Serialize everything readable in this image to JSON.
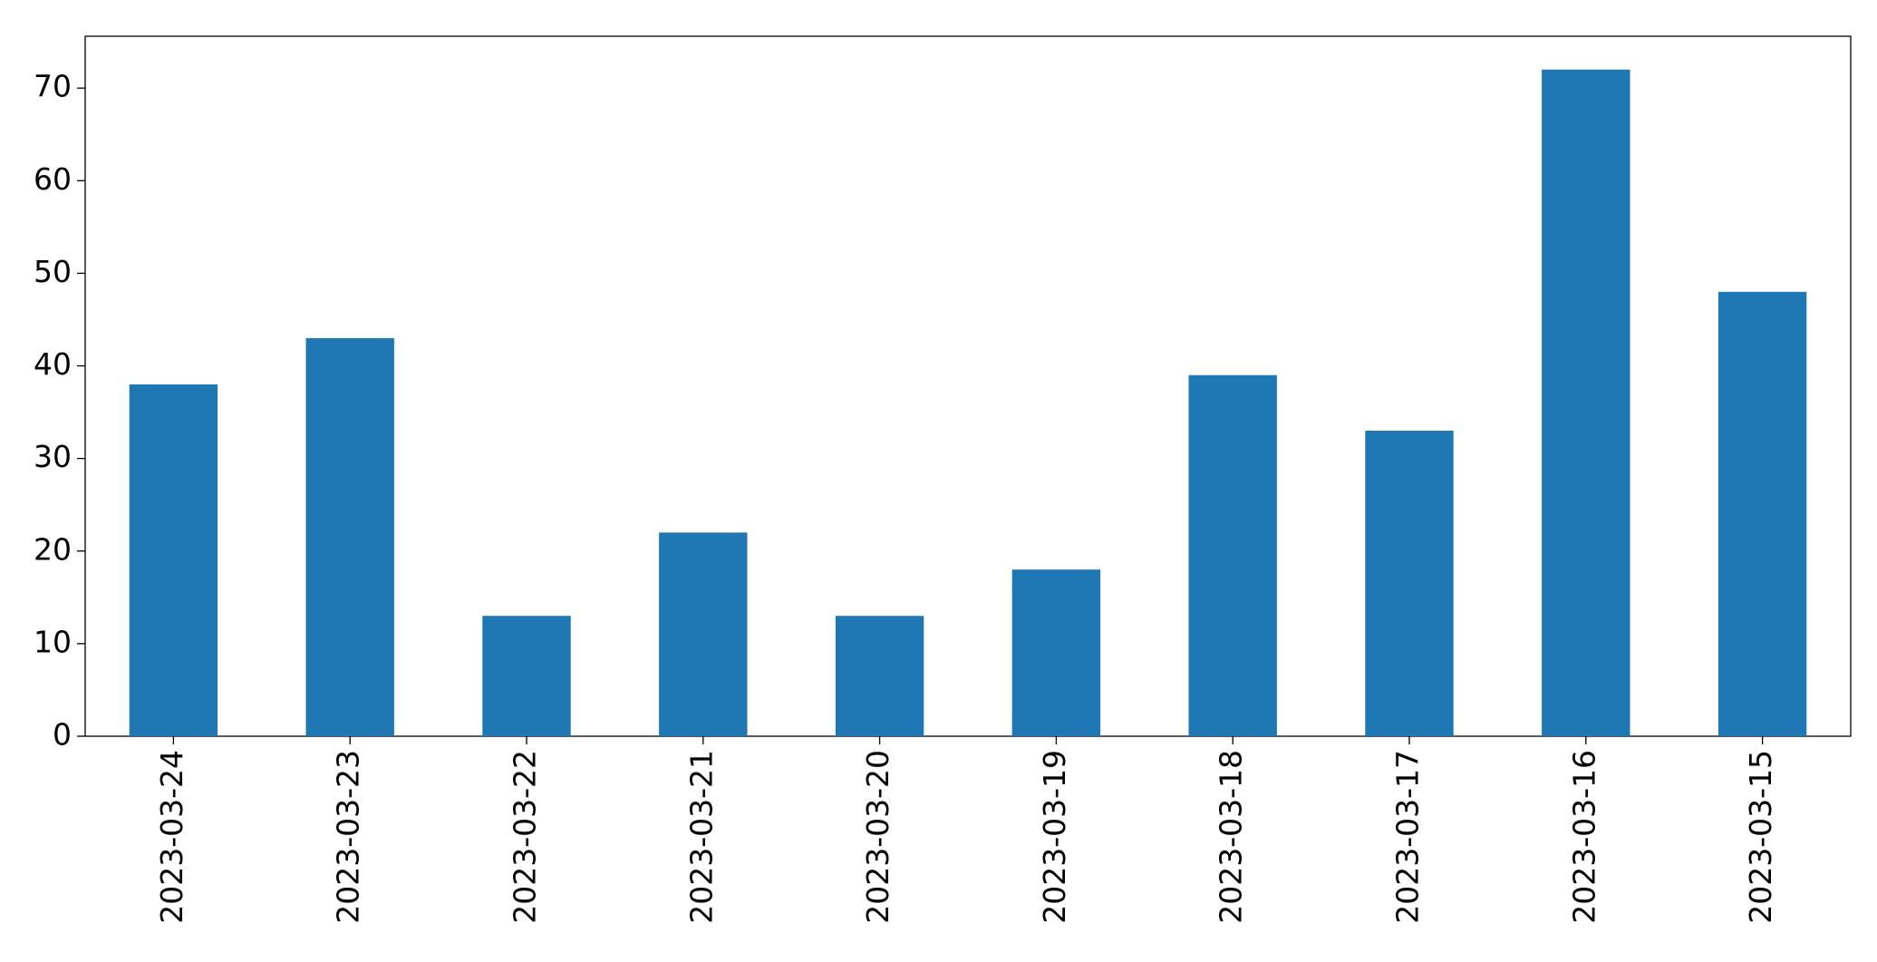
{
  "chart_data": {
    "type": "bar",
    "categories": [
      "2023-03-24",
      "2023-03-23",
      "2023-03-22",
      "2023-03-21",
      "2023-03-20",
      "2023-03-19",
      "2023-03-18",
      "2023-03-17",
      "2023-03-16",
      "2023-03-15"
    ],
    "values": [
      38,
      43,
      13,
      22,
      13,
      18,
      39,
      33,
      72,
      48
    ],
    "color": "#1f77b4",
    "ylim": [
      0,
      75.6
    ],
    "yticks": [
      0,
      10,
      20,
      30,
      40,
      50,
      60,
      70
    ],
    "grid": false
  }
}
